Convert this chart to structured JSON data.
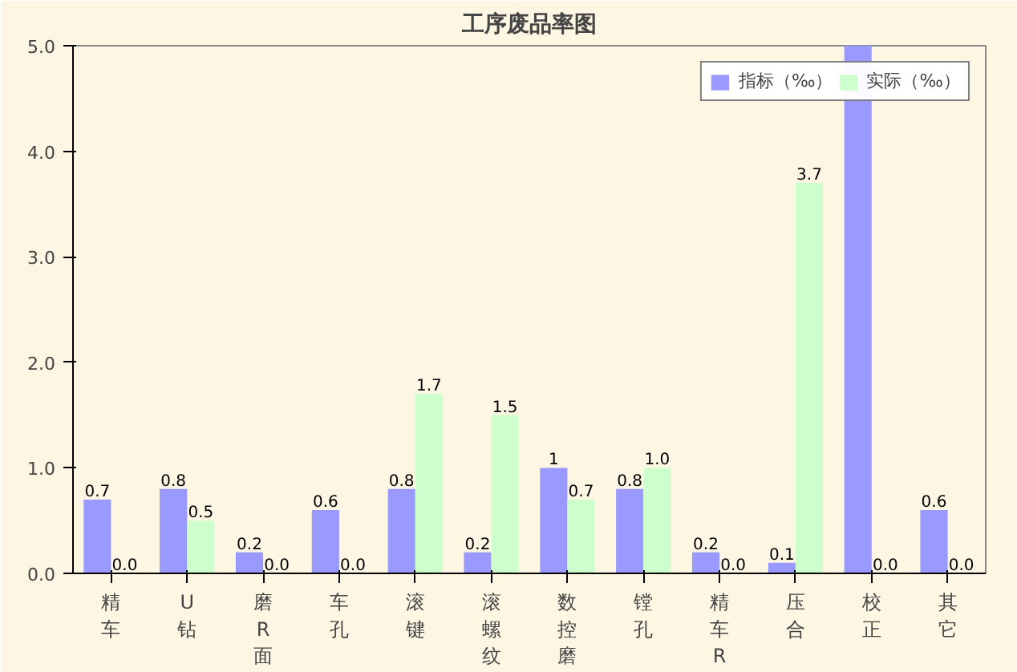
{
  "chart_data": {
    "type": "bar",
    "title": "工序废品率图",
    "categories": [
      "精车",
      "U钻",
      "磨R面",
      "车孔",
      "滚键",
      "滚螺纹",
      "数控磨",
      "镗孔",
      "精车R",
      "压合",
      "校正",
      "其它"
    ],
    "series": [
      {
        "name": "指标（‰）",
        "color": "#9999ff",
        "values": [
          0.7,
          0.8,
          0.2,
          0.6,
          0.8,
          0.2,
          1,
          0.8,
          0.2,
          0.1,
          5.0,
          0.6
        ],
        "value_labels": [
          "0.7",
          "0.8",
          "0.2",
          "0.6",
          "0.8",
          "0.2",
          "1",
          "0.8",
          "0.2",
          "0.1",
          null,
          "0.6"
        ]
      },
      {
        "name": "实际（‰）",
        "color": "#ccffcc",
        "values": [
          0.0,
          0.5,
          0.0,
          0.0,
          1.7,
          1.5,
          0.7,
          1.0,
          0.0,
          3.7,
          0.0,
          0.0
        ],
        "value_labels": [
          "0.0",
          "0.5",
          "0.0",
          "0.0",
          "1.7",
          "1.5",
          "0.7",
          "1.0",
          "0.0",
          "3.7",
          "0.0",
          "0.0"
        ]
      }
    ],
    "ylim": [
      0,
      5
    ],
    "yticks": [
      {
        "value": 0,
        "label": "0.0"
      },
      {
        "value": 1,
        "label": "1.0"
      },
      {
        "value": 2,
        "label": "2.0"
      },
      {
        "value": 3,
        "label": "3.0"
      },
      {
        "value": 4,
        "label": "4.0"
      },
      {
        "value": 5,
        "label": "5.0"
      }
    ],
    "grid": false,
    "legend": "top right"
  }
}
